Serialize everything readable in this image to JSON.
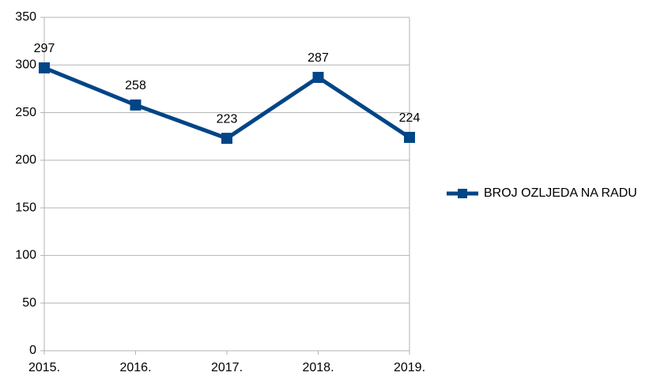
{
  "chart_data": {
    "type": "line",
    "categories": [
      "2015.",
      "2016.",
      "2017.",
      "2018.",
      "2019."
    ],
    "series": [
      {
        "name": "BROJ OZLJEDA NA RADU",
        "color": "#004586",
        "values": [
          297,
          258,
          223,
          287,
          224
        ]
      }
    ],
    "ylim": [
      0,
      350
    ],
    "yticks": [
      0,
      50,
      100,
      150,
      200,
      250,
      300,
      350
    ],
    "grid": true,
    "legend": "right"
  }
}
